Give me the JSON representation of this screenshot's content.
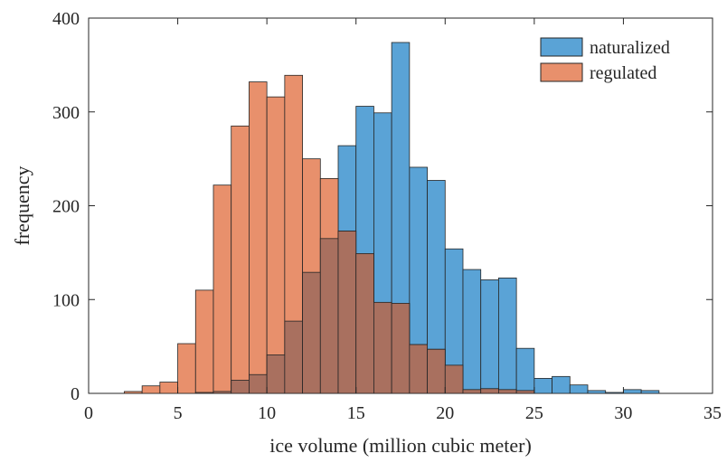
{
  "chart_data": {
    "type": "bar",
    "subtype": "overlapping-histogram",
    "title": "",
    "xlabel": "ice volume (million cubic meter)",
    "ylabel": "frequency",
    "xlim": [
      0,
      35
    ],
    "ylim": [
      0,
      400
    ],
    "xticks": [
      0,
      5,
      10,
      15,
      20,
      25,
      30,
      35
    ],
    "yticks": [
      0,
      100,
      200,
      300,
      400
    ],
    "bin_width": 1,
    "bin_edges_start": [
      2,
      3,
      4,
      5,
      6,
      7,
      8,
      9,
      10,
      11,
      12,
      13,
      14,
      15,
      16,
      17,
      18,
      19,
      20,
      21,
      22,
      23,
      24,
      25,
      26,
      27,
      28,
      29,
      30,
      31
    ],
    "legend_position": "top-right",
    "series": [
      {
        "name": "naturalized",
        "color": "#5aa3d6",
        "values": [
          0,
          0,
          0,
          0,
          1,
          2,
          14,
          20,
          41,
          77,
          129,
          165,
          264,
          306,
          299,
          374,
          241,
          227,
          154,
          132,
          121,
          123,
          48,
          16,
          18,
          9,
          3,
          1,
          4,
          3
        ]
      },
      {
        "name": "regulated",
        "color": "#e8906c",
        "values": [
          2,
          8,
          12,
          53,
          110,
          222,
          285,
          332,
          316,
          339,
          250,
          229,
          173,
          149,
          97,
          96,
          52,
          47,
          30,
          4,
          5,
          4,
          3,
          0,
          0,
          0,
          0,
          0,
          0,
          0
        ]
      }
    ],
    "overlap_color": "#a9705f"
  }
}
